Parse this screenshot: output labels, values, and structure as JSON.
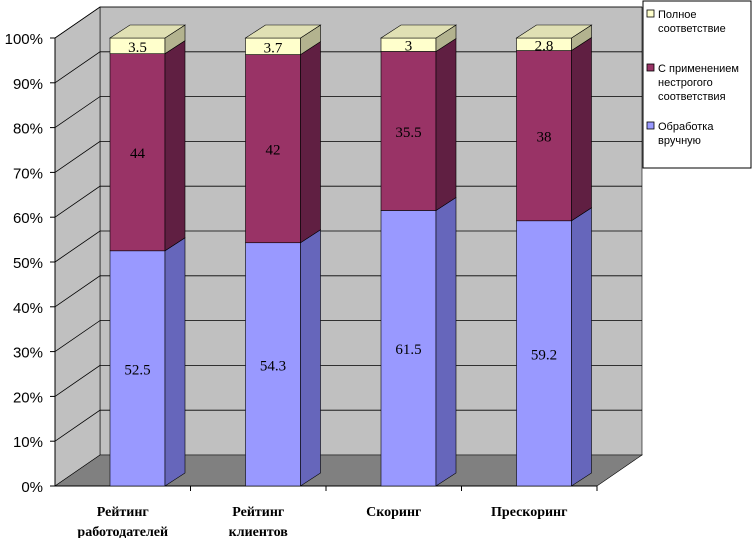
{
  "chart_data": {
    "type": "bar",
    "stacked": true,
    "percent_stacked": true,
    "three_d": true,
    "categories": [
      [
        "Рейтинг",
        "работодателей"
      ],
      [
        "Рейтинг",
        "клиентов"
      ],
      [
        "Скоринг"
      ],
      [
        "Прескоринг"
      ]
    ],
    "series": [
      {
        "name": "Обработка вручную",
        "values": [
          52.5,
          54.3,
          61.5,
          59.2
        ],
        "color": "#9999ff",
        "side_color": "#6666bb",
        "top_color": "#b8b8ff"
      },
      {
        "name": "С применением нестрогого соответствия",
        "values": [
          44,
          42,
          35.5,
          38
        ],
        "color": "#993366",
        "side_color": "#601f42",
        "top_color": "#b0577f"
      },
      {
        "name": "Полное соответствие",
        "values": [
          3.5,
          3.7,
          3,
          2.8
        ],
        "color": "#ffffcc",
        "side_color": "#b3b38f",
        "top_color": "#e0e0b4"
      }
    ],
    "value_labels": [
      [
        "52.5",
        "54.3",
        "61.5",
        "59.2"
      ],
      [
        "44",
        "42",
        "35.5",
        "38"
      ],
      [
        "3.5",
        "3.7",
        "3",
        "2.8"
      ]
    ],
    "y_ticks": [
      "0%",
      "10%",
      "20%",
      "30%",
      "40%",
      "50%",
      "60%",
      "70%",
      "80%",
      "90%",
      "100%"
    ],
    "ylim": [
      0,
      100
    ],
    "grid": true,
    "legend_position": "right",
    "legend_order": [
      2,
      1,
      0
    ],
    "legend_lines": [
      [
        "Полное",
        "соответствие"
      ],
      [
        "С применением",
        "нестрогого",
        "соответствия"
      ],
      [
        "Обработка",
        "вручную"
      ]
    ],
    "wall_color": "#c0c0c0",
    "floor_color": "#808080"
  }
}
